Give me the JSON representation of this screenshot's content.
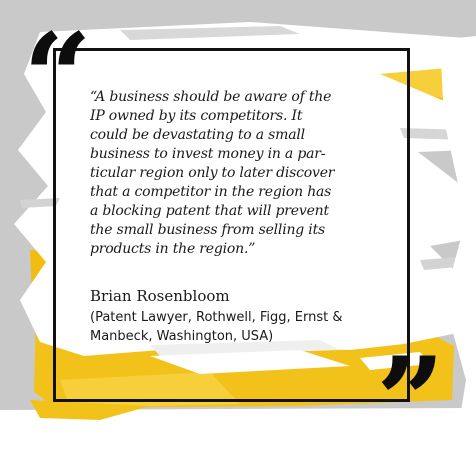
{
  "quote": {
    "open_mark": "“",
    "close_mark": "”",
    "text": "“A business should be aware of the\nIP owned by its competitors. It\ncould be devastating to a small\nbusiness to invest money in a par-\nticular region only to later discover\nthat a competitor in the region has\na blocking patent that will prevent\nthe small business from selling its\nproducts in the region.”"
  },
  "author": {
    "name": "Brian Rosenbloom",
    "role": "(Patent Lawyer, Rothwell, Figg, Ernst &\nManbeck, Washington, USA)"
  },
  "colors": {
    "accent": "#f3c21a",
    "frame": "#111111",
    "background": "#c9c9c9",
    "paper": "#ffffff"
  }
}
